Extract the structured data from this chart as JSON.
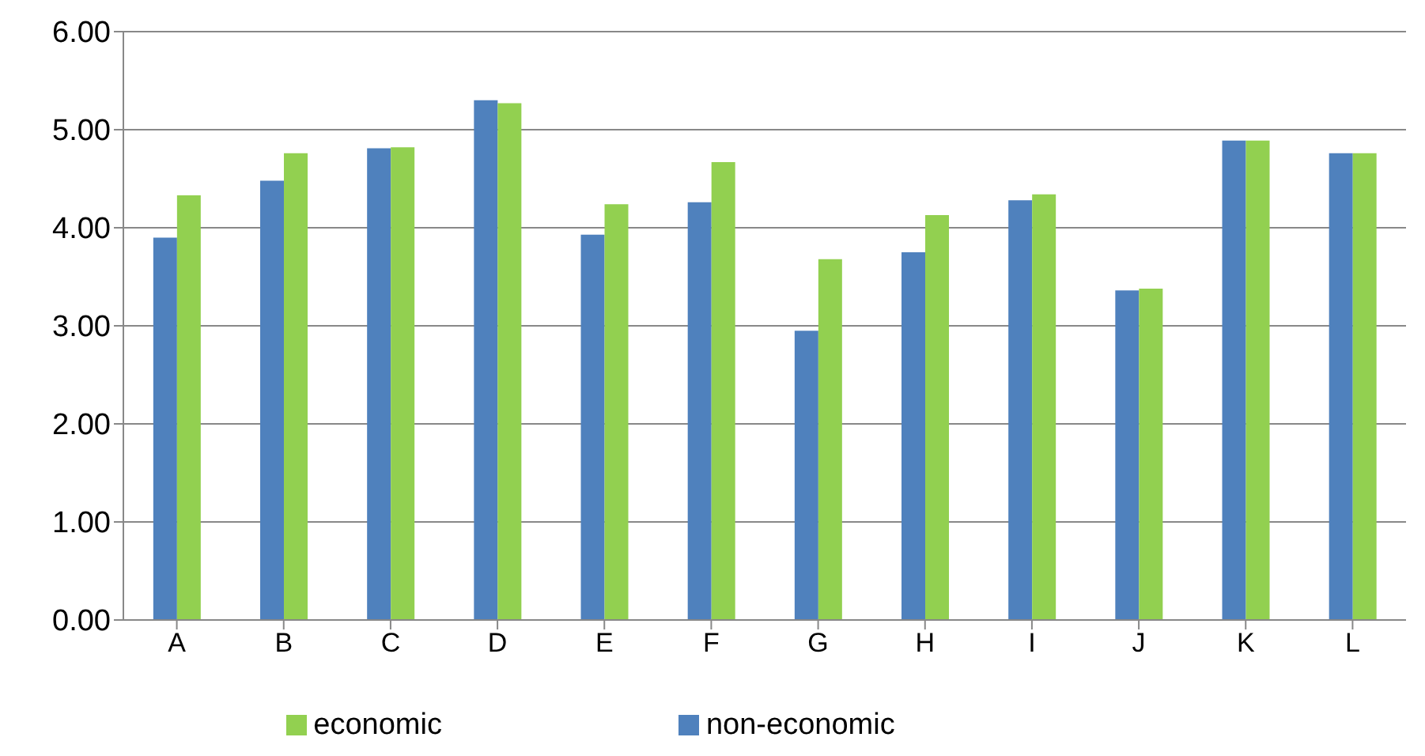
{
  "chart_data": {
    "type": "bar",
    "categories": [
      "A",
      "B",
      "C",
      "D",
      "E",
      "F",
      "G",
      "H",
      "I",
      "J",
      "K",
      "L"
    ],
    "series": [
      {
        "name": "non-economic",
        "color": "#4f81bd",
        "values": [
          3.9,
          4.48,
          4.81,
          5.3,
          3.93,
          4.26,
          2.95,
          3.75,
          4.28,
          3.36,
          4.89,
          4.76
        ]
      },
      {
        "name": "economic",
        "color": "#92d050",
        "values": [
          4.33,
          4.76,
          4.82,
          5.27,
          4.24,
          4.67,
          3.68,
          4.13,
          4.34,
          3.38,
          4.89,
          4.76
        ]
      }
    ],
    "ylim": [
      0,
      6
    ],
    "yticks": [
      {
        "value": 0,
        "label": "0.00"
      },
      {
        "value": 1,
        "label": "1.00"
      },
      {
        "value": 2,
        "label": "2.00"
      },
      {
        "value": 3,
        "label": "3.00"
      },
      {
        "value": 4,
        "label": "4.00"
      },
      {
        "value": 5,
        "label": "5.00"
      },
      {
        "value": 6,
        "label": "6.00"
      }
    ],
    "grid": "y",
    "legend": "bottom"
  }
}
